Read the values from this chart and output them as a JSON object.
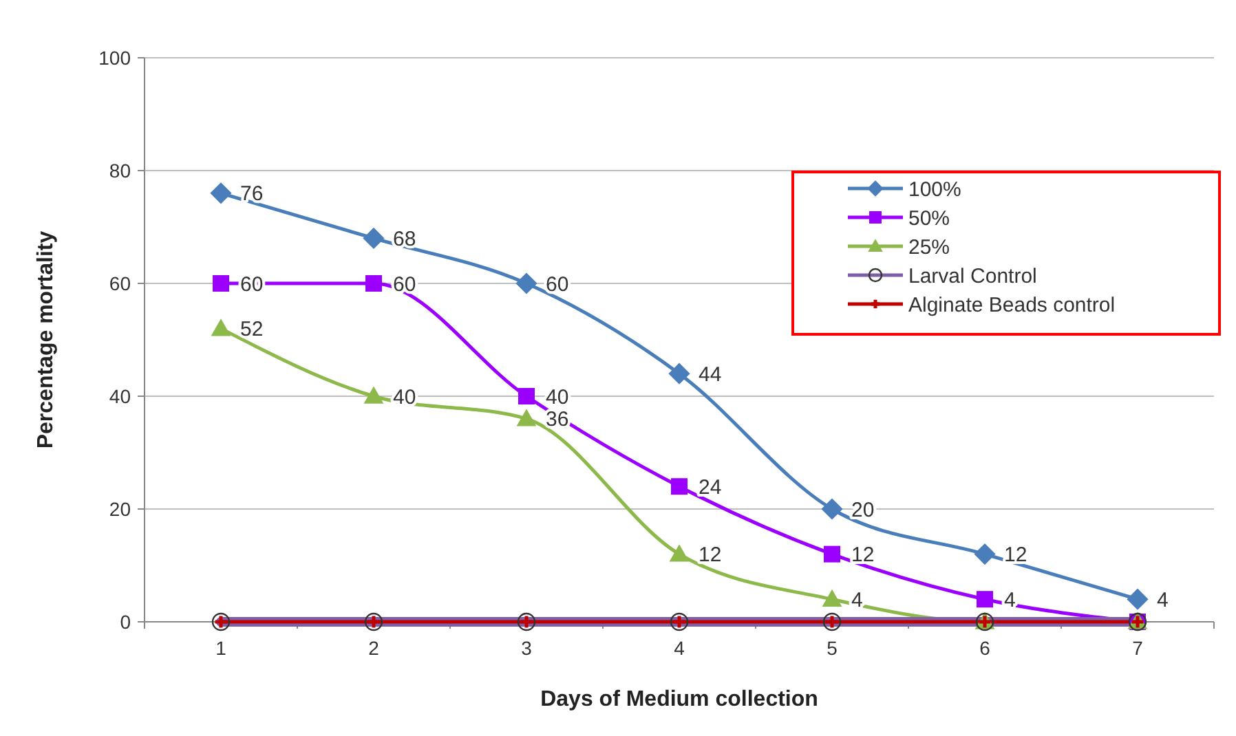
{
  "chart_data": {
    "type": "line",
    "xlabel": "Days of Medium collection",
    "ylabel": "Percentage mortality",
    "categories": [
      "1",
      "2",
      "3",
      "4",
      "5",
      "6",
      "7"
    ],
    "ylim": [
      0,
      100
    ],
    "yticks": [
      0,
      20,
      40,
      60,
      80,
      100
    ],
    "grid": "y",
    "legend": "top right",
    "series": [
      {
        "name": "100%",
        "color": "#4a7ebb",
        "marker": "diamond",
        "values": [
          76,
          68,
          60,
          44,
          20,
          12,
          4
        ],
        "value_labels": [
          "76",
          "68",
          "60",
          "44",
          "20",
          "12",
          "4"
        ]
      },
      {
        "name": "50%",
        "color": "#9b00ff",
        "marker": "square",
        "values": [
          60,
          60,
          40,
          24,
          12,
          4,
          0
        ],
        "value_labels": [
          "60",
          "60",
          "40",
          "24",
          "12",
          "4",
          null
        ]
      },
      {
        "name": "25%",
        "color": "#8db84a",
        "marker": "triangle",
        "values": [
          52,
          40,
          36,
          12,
          4,
          0,
          0
        ],
        "value_labels": [
          "52",
          "40",
          "36",
          "12",
          "4",
          null,
          null
        ]
      },
      {
        "name": "Larval Control",
        "color": "#7f5fa8",
        "marker": "circle",
        "values": [
          0,
          0,
          0,
          0,
          0,
          0,
          0
        ]
      },
      {
        "name": "Alginate Beads control",
        "color": "#c00000",
        "marker": "cross",
        "values": [
          0,
          0,
          0,
          0,
          0,
          0,
          0
        ]
      }
    ]
  }
}
